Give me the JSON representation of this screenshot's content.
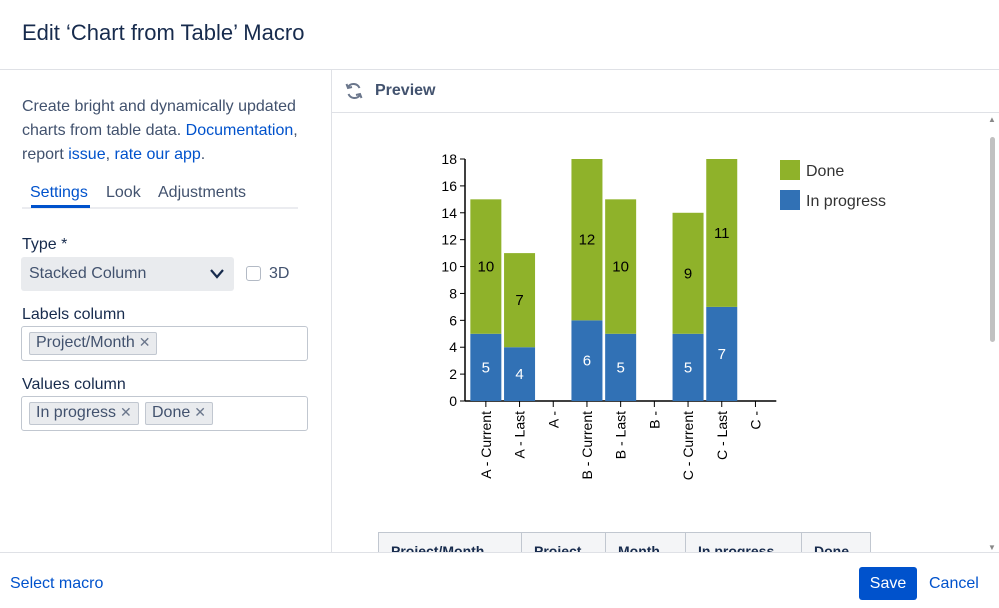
{
  "dialog": {
    "title": "Edit ‘Chart from Table’ Macro"
  },
  "left": {
    "desc_line1": "Create bright and dynamically updated",
    "desc_line2_prefix": "charts from table data. ",
    "documentation_link": "Documentation",
    "desc_line2_suffix": ",",
    "desc_line3_prefix": "report ",
    "issue_link": "issue",
    "desc_sep": ", ",
    "rate_link": "rate our app",
    "desc_end": ".",
    "tabs": [
      "Settings",
      "Look",
      "Adjustments"
    ],
    "type_label": "Type *",
    "type_value": "Stacked Column",
    "three_d_label": "3D",
    "labels_column_label": "Labels column",
    "labels_tags": [
      "Project/Month"
    ],
    "values_column_label": "Values column",
    "values_tags": [
      "In progress",
      "Done"
    ]
  },
  "preview": {
    "title": "Preview"
  },
  "chart_data": {
    "type": "bar",
    "stacked": true,
    "categories": [
      "A - Current",
      "A - Last",
      "A -",
      "B - Current",
      "B - Last",
      "B -",
      "C - Current",
      "C - Last",
      "C -"
    ],
    "series": [
      {
        "name": "In progress",
        "color": "#3171b5",
        "values": [
          5,
          4,
          null,
          6,
          5,
          null,
          5,
          7,
          null
        ]
      },
      {
        "name": "Done",
        "color": "#8fb22a",
        "values": [
          10,
          7,
          null,
          12,
          10,
          null,
          9,
          11,
          null
        ]
      }
    ],
    "ylim": [
      0,
      18
    ],
    "yticks": [
      "0",
      "2",
      "4",
      "6",
      "8",
      "10",
      "12",
      "14",
      "16",
      "18"
    ],
    "legend_position": "top-right"
  },
  "table_headers": [
    "Project/Month",
    "Project",
    "Month",
    "In progress",
    "Done"
  ],
  "footer": {
    "select_macro": "Select macro",
    "save": "Save",
    "cancel": "Cancel"
  }
}
